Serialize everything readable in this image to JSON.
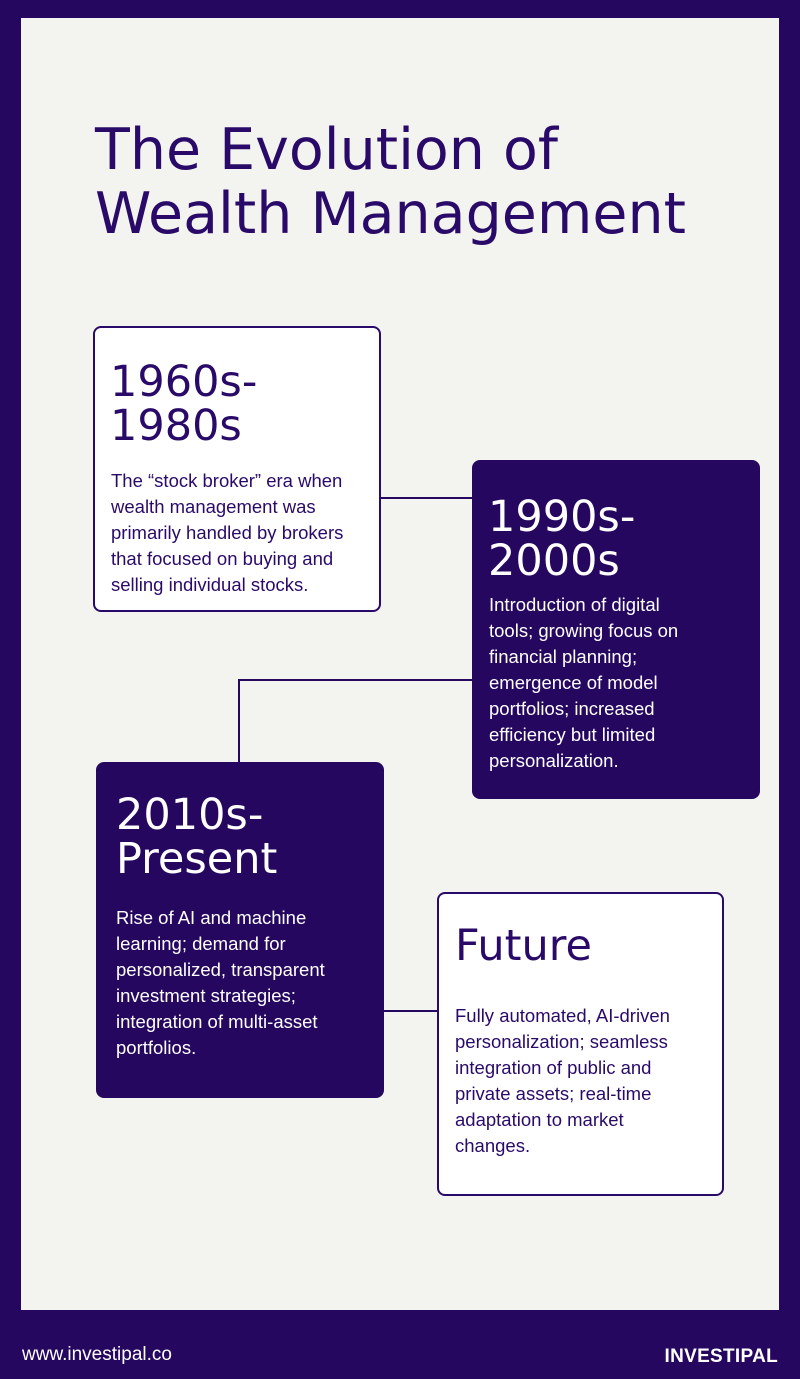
{
  "title": {
    "line1": "The Evolution of",
    "line2": "Wealth Management"
  },
  "timeline": [
    {
      "era_line1": "1960s-",
      "era_line2": "1980s",
      "desc_lines": [
        "The “stock broker” era when",
        "wealth management was",
        "primarily handled by brokers",
        "that focused on buying and",
        "selling individual stocks."
      ]
    },
    {
      "era_line1": "1990s-",
      "era_line2": "2000s",
      "desc_lines": [
        "Introduction of digital",
        "tools; growing focus on",
        "financial planning;",
        "emergence of model",
        "portfolios; increased",
        "efficiency but limited",
        "personalization."
      ]
    },
    {
      "era_line1": "2010s-",
      "era_line2": "Present",
      "desc_lines": [
        "Rise of AI and machine",
        "learning; demand for",
        "personalized, transparent",
        "investment strategies;",
        "integration of multi-asset",
        "portfolios."
      ]
    },
    {
      "era_line1": "Future",
      "desc_lines": [
        "Fully automated, AI-driven",
        "personalization; seamless",
        "integration of public and",
        "private assets; real-time",
        "adaptation to market",
        "changes."
      ]
    }
  ],
  "footer": {
    "url": "www.investipal.co",
    "logo": "INVESTIPAL"
  },
  "colors": {
    "brand": "#25075f",
    "background": "#f3f3ef",
    "card_light": "#ffffff"
  }
}
